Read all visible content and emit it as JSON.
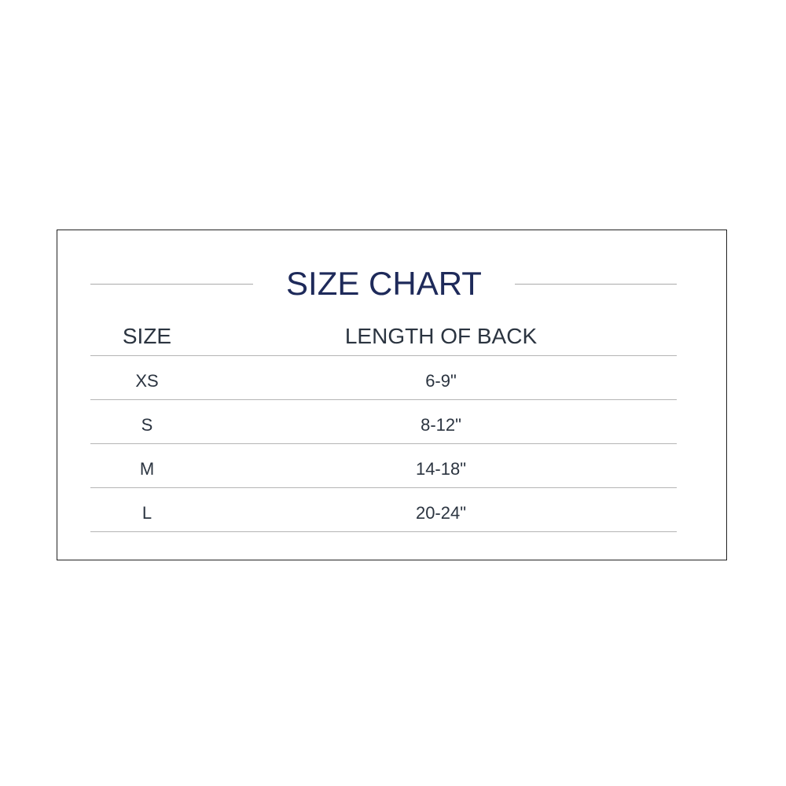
{
  "title": "SIZE CHART",
  "columns": [
    "SIZE",
    "LENGTH OF BACK"
  ],
  "rows": [
    {
      "size": "XS",
      "length": "6-9\""
    },
    {
      "size": "S",
      "length": "8-12\""
    },
    {
      "size": "M",
      "length": "14-18\""
    },
    {
      "size": "L",
      "length": "20-24\""
    }
  ],
  "colors": {
    "title": "#1e2a5a",
    "text": "#2b3440",
    "rule": "#b5b5b5"
  }
}
